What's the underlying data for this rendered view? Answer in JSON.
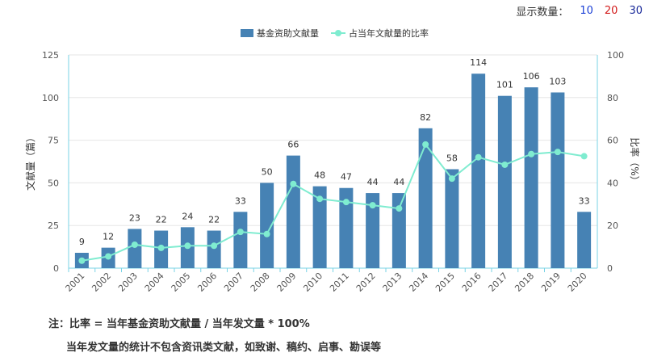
{
  "display_count": {
    "label": "显示数量：",
    "options": [
      "10",
      "20",
      "30"
    ],
    "colors": [
      "#1a3fd6",
      "#d21a1a",
      "#1a2a9a"
    ]
  },
  "chart_data": {
    "type": "bar",
    "categories": [
      "2001",
      "2002",
      "2003",
      "2004",
      "2005",
      "2006",
      "2007",
      "2008",
      "2009",
      "2010",
      "2011",
      "2012",
      "2013",
      "2014",
      "2015",
      "2016",
      "2017",
      "2018",
      "2019",
      "2020"
    ],
    "series": [
      {
        "name": "基金资助文献量",
        "type": "bar",
        "axis": "left",
        "color": "#4682b4",
        "values": [
          9,
          12,
          23,
          22,
          24,
          22,
          33,
          50,
          66,
          48,
          47,
          44,
          44,
          82,
          58,
          114,
          101,
          106,
          103,
          33
        ]
      },
      {
        "name": "占当年文献量的比率",
        "type": "line",
        "axis": "right",
        "color": "#7fecd0",
        "values": [
          3.5,
          5.5,
          11,
          9.5,
          10.5,
          10.5,
          17,
          16,
          39.5,
          32.5,
          31,
          29.5,
          28,
          58,
          42,
          52,
          48.5,
          53.5,
          54.5,
          52.5
        ]
      }
    ],
    "ylabel_left": "文献量（篇）",
    "ylabel_right": "比率（%）",
    "ylim_left": [
      0,
      125
    ],
    "yticks_left": [
      "0",
      "25",
      "50",
      "75",
      "100",
      "125"
    ],
    "ylim_right": [
      0,
      100
    ],
    "yticks_right": [
      "0",
      "20",
      "40",
      "60",
      "80",
      "100"
    ],
    "legend_position": "top-center",
    "grid": true,
    "data_labels": true
  },
  "notes": {
    "line1": "注：比率 = 当年基金资助文献量 / 当年发文量 * 100%",
    "line2": "当年发文量的统计不包含资讯类文献，如致谢、稿约、启事、勘误等"
  }
}
